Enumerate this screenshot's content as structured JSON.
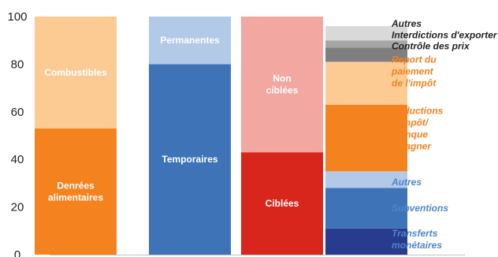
{
  "chart_data": {
    "type": "bar",
    "stacked": true,
    "title": "",
    "xlabel": "",
    "ylabel": "",
    "ylim": [
      0,
      100
    ],
    "yticks": [
      0,
      20,
      40,
      60,
      80,
      100
    ],
    "grid": false,
    "columns": [
      {
        "segments": [
          {
            "label": "Denrées\nalimentaires",
            "value": 53,
            "color": "#f4821f"
          },
          {
            "label": "Combustibles",
            "value": 47,
            "color": "#fccb94"
          }
        ]
      },
      {
        "segments": [
          {
            "label": "Temporaires",
            "value": 80,
            "color": "#3f73b7"
          },
          {
            "label": "Permanentes",
            "value": 20,
            "color": "#b3c9e8"
          }
        ]
      },
      {
        "segments": [
          {
            "label": "Ciblées",
            "value": 43,
            "color": "#d9261c"
          },
          {
            "label": "Non\nciblées",
            "value": 57,
            "color": "#f2a7a1"
          }
        ]
      },
      {
        "segments": [
          {
            "label": "Transferts\nmonétaires",
            "value": 11,
            "color": "#283b8f"
          },
          {
            "label": "Subventions",
            "value": 17,
            "color": "#3f73b7"
          },
          {
            "label": "Autres",
            "value": 7,
            "color": "#b3c9e8"
          },
          {
            "label": "Réductions\nd'impôt/\nmanque\nà gagner",
            "value": 28,
            "color": "#f4821f"
          },
          {
            "label": "Report du\npaiement\nde l'impôt",
            "value": 18,
            "color": "#fccb94"
          },
          {
            "label": "Contrôle des prix",
            "value": 6,
            "color": "#7f7f7f"
          },
          {
            "label": "Interdictions d'exporter",
            "value": 3,
            "color": "#a6a6a6"
          },
          {
            "label": "Autres",
            "value": 6,
            "color": "#d9d9d9"
          }
        ]
      }
    ],
    "legend_placement": "right",
    "legend": [
      {
        "text": "Autres",
        "color": "#222222",
        "y": 97
      },
      {
        "text": "Interdictions d'exporter",
        "color": "#222222",
        "y": 92.3
      },
      {
        "text": "Contrôle des prix",
        "color": "#222222",
        "y": 87.6
      },
      {
        "text": "Report du\npaiement\nde l'impôt",
        "color": "#f4821f",
        "y": 77
      },
      {
        "text": "Réductions\nd'impôt/\nmanque\nà gagner",
        "color": "#f4821f",
        "y": 53
      },
      {
        "text": "Autres",
        "color": "#4f86c6",
        "y": 30.5
      },
      {
        "text": "Subventions",
        "color": "#4f86c6",
        "y": 19.5
      },
      {
        "text": "Transferts\nmonétaires",
        "color": "#4f86c6",
        "y": 6.5
      }
    ]
  }
}
